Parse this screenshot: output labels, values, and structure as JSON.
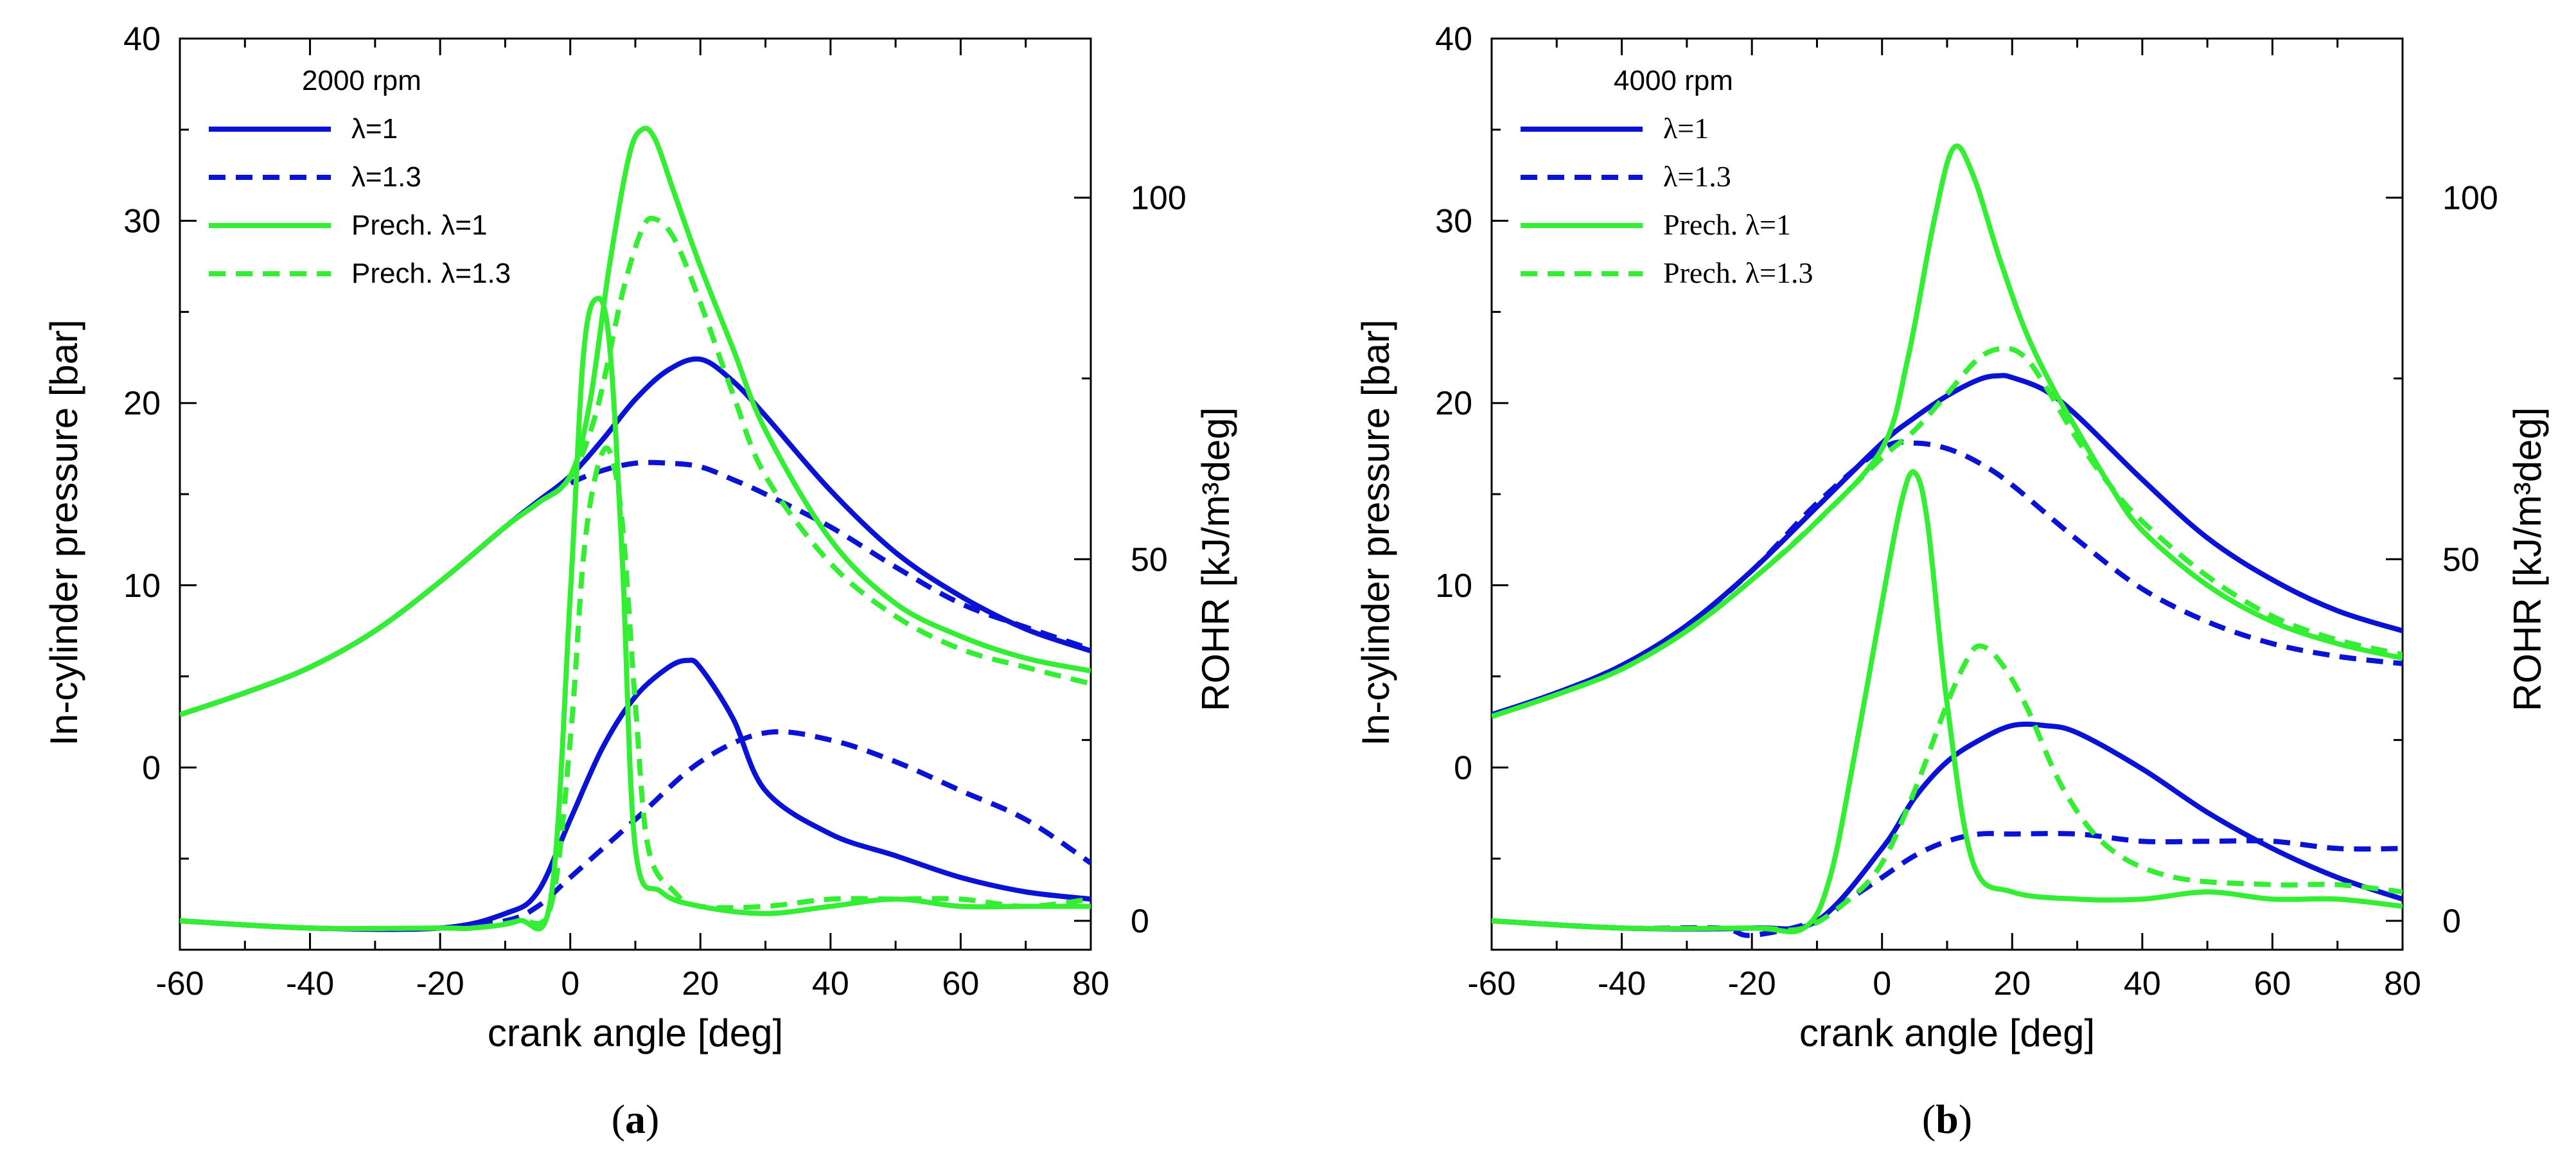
{
  "colors": {
    "blue": "#0a12d6",
    "green": "#33ee33",
    "axis": "#000000"
  },
  "chart_data": [
    {
      "type": "line",
      "panel_caption": "(a)",
      "caption_letter": "a",
      "legend_title": "2000 rpm",
      "xlabel": "crank angle [deg]",
      "ylabel": "In-cylinder pressure [bar]",
      "ylabel2": "ROHR [kJ/m³deg]",
      "xlim": [
        -60,
        80
      ],
      "ylim": [
        -10,
        40
      ],
      "y2lim": [
        -4,
        122
      ],
      "xticks": [
        -60,
        -40,
        -20,
        0,
        20,
        40,
        60,
        80
      ],
      "yticks": [
        0,
        10,
        20,
        30,
        40
      ],
      "y2ticks": [
        0,
        50,
        100
      ],
      "legend": [
        "λ=1",
        "λ=1.3",
        "Prech. λ=1",
        "Prech. λ=1.3"
      ],
      "series": [
        {
          "name": "λ=1",
          "axis": "pressure",
          "color": "blue",
          "dash": false,
          "x": [
            -60,
            -50,
            -40,
            -30,
            -20,
            -10,
            -5,
            0,
            5,
            10,
            15,
            20,
            25,
            30,
            40,
            50,
            60,
            70,
            80
          ],
          "y": [
            2.9,
            4.1,
            5.5,
            7.5,
            10.2,
            13.2,
            14.6,
            16.0,
            18.0,
            20.2,
            21.8,
            22.4,
            21.2,
            19.3,
            15.2,
            11.8,
            9.4,
            7.6,
            6.4
          ]
        },
        {
          "name": "λ=1.3",
          "axis": "pressure",
          "color": "blue",
          "dash": true,
          "x": [
            -60,
            -50,
            -40,
            -30,
            -20,
            -10,
            -5,
            0,
            5,
            10,
            15,
            20,
            25,
            30,
            40,
            50,
            60,
            70,
            80
          ],
          "y": [
            2.9,
            4.1,
            5.5,
            7.5,
            10.2,
            13.2,
            14.5,
            15.6,
            16.3,
            16.7,
            16.7,
            16.5,
            15.8,
            15.0,
            13.2,
            11.0,
            9.0,
            7.7,
            6.5
          ]
        },
        {
          "name": "Prech. λ=1",
          "axis": "pressure",
          "color": "green",
          "dash": false,
          "x": [
            -60,
            -50,
            -40,
            -30,
            -20,
            -10,
            -5,
            0,
            3,
            6,
            9,
            11,
            13,
            16,
            20,
            25,
            30,
            40,
            50,
            60,
            70,
            80
          ],
          "y": [
            2.9,
            4.1,
            5.5,
            7.5,
            10.2,
            13.2,
            14.5,
            16.0,
            20.0,
            27.5,
            33.5,
            35.0,
            34.5,
            31.5,
            27.5,
            23.0,
            18.5,
            12.5,
            9.0,
            7.2,
            6.0,
            5.3
          ]
        },
        {
          "name": "Prech. λ=1.3",
          "axis": "pressure",
          "color": "green",
          "dash": true,
          "x": [
            -60,
            -50,
            -40,
            -30,
            -20,
            -10,
            -5,
            0,
            4,
            8,
            11,
            13,
            16,
            20,
            25,
            30,
            40,
            50,
            60,
            70,
            80
          ],
          "y": [
            2.9,
            4.1,
            5.5,
            7.5,
            10.2,
            13.2,
            14.5,
            15.9,
            19.5,
            26.0,
            29.5,
            30.1,
            29.0,
            25.5,
            20.5,
            16.0,
            11.2,
            8.3,
            6.5,
            5.5,
            4.6
          ]
        },
        {
          "name": "λ=1 ROHR",
          "axis": "rohr",
          "color": "blue",
          "dash": false,
          "x": [
            -60,
            -40,
            -20,
            -10,
            -5,
            0,
            5,
            10,
            15,
            18,
            20,
            25,
            30,
            40,
            50,
            60,
            70,
            80
          ],
          "y": [
            0,
            -1,
            -1,
            1,
            4,
            14,
            24,
            31,
            35,
            36,
            35,
            28,
            18,
            12,
            9,
            6,
            4,
            3
          ]
        },
        {
          "name": "λ=1.3 ROHR",
          "axis": "rohr",
          "color": "blue",
          "dash": true,
          "x": [
            -60,
            -40,
            -20,
            -10,
            -5,
            0,
            10,
            20,
            30,
            40,
            50,
            60,
            70,
            80
          ],
          "y": [
            0,
            -1,
            -1,
            0,
            2,
            6,
            14,
            22,
            26,
            25,
            22,
            18,
            14,
            8
          ]
        },
        {
          "name": "Prech. λ=1 ROHR",
          "axis": "rohr",
          "color": "green",
          "dash": false,
          "x": [
            -60,
            -40,
            -20,
            -15,
            -8,
            -3,
            0,
            2,
            4,
            6,
            8,
            10,
            14,
            20,
            30,
            40,
            50,
            60,
            70,
            80
          ],
          "y": [
            0,
            -1,
            -1,
            -1,
            0,
            3,
            45,
            78,
            86,
            80,
            50,
            10,
            4,
            2,
            1,
            2,
            3,
            2,
            2,
            2
          ]
        },
        {
          "name": "Prech. λ=1.3 ROHR",
          "axis": "rohr",
          "color": "green",
          "dash": true,
          "x": [
            -60,
            -40,
            -20,
            -15,
            -8,
            -3,
            0,
            2,
            4,
            6,
            8,
            10,
            12,
            16,
            20,
            30,
            40,
            50,
            60,
            70,
            80
          ],
          "y": [
            0,
            -1,
            -1,
            -1,
            0,
            2,
            25,
            50,
            62,
            65,
            55,
            30,
            10,
            4,
            2,
            2,
            3,
            3,
            3,
            2,
            3
          ]
        }
      ]
    },
    {
      "type": "line",
      "panel_caption": "(b)",
      "caption_letter": "b",
      "legend_title": "4000 rpm",
      "xlabel": "crank angle [deg]",
      "ylabel": "In-cylinder pressure [bar]",
      "ylabel2": "ROHR [kJ/m³deg]",
      "xlim": [
        -60,
        80
      ],
      "ylim": [
        -10,
        40
      ],
      "y2lim": [
        -4,
        122
      ],
      "xticks": [
        -60,
        -40,
        -20,
        0,
        20,
        40,
        60,
        80
      ],
      "yticks": [
        0,
        10,
        20,
        30,
        40
      ],
      "y2ticks": [
        0,
        50,
        100
      ],
      "legend": [
        "λ=1",
        "λ=1.3",
        "Prech. λ=1",
        "Prech. λ=1.3"
      ],
      "series": [
        {
          "name": "λ=1",
          "axis": "pressure",
          "color": "blue",
          "dash": false,
          "x": [
            -60,
            -50,
            -40,
            -30,
            -20,
            -10,
            0,
            5,
            10,
            15,
            18,
            20,
            25,
            30,
            40,
            50,
            60,
            70,
            80
          ],
          "y": [
            2.9,
            4.1,
            5.6,
            7.8,
            10.8,
            14.3,
            17.8,
            19.2,
            20.4,
            21.3,
            21.5,
            21.4,
            20.7,
            19.3,
            15.8,
            12.6,
            10.3,
            8.6,
            7.5
          ]
        },
        {
          "name": "λ=1.3",
          "axis": "pressure",
          "color": "blue",
          "dash": true,
          "x": [
            -60,
            -50,
            -40,
            -30,
            -20,
            -10,
            0,
            5,
            10,
            15,
            20,
            30,
            40,
            50,
            60,
            70,
            80
          ],
          "y": [
            2.9,
            4.1,
            5.6,
            7.8,
            10.8,
            14.5,
            17.5,
            17.8,
            17.5,
            16.7,
            15.5,
            12.5,
            9.8,
            8.0,
            6.8,
            6.1,
            5.7
          ]
        },
        {
          "name": "Prech. λ=1",
          "axis": "pressure",
          "color": "green",
          "dash": false,
          "x": [
            -60,
            -50,
            -40,
            -30,
            -20,
            -10,
            0,
            4,
            8,
            11,
            14,
            18,
            22,
            26,
            30,
            35,
            40,
            50,
            60,
            70,
            80
          ],
          "y": [
            2.8,
            4.0,
            5.4,
            7.5,
            10.3,
            13.5,
            17.5,
            22.5,
            30.0,
            34.0,
            32.5,
            28.0,
            24.0,
            21.0,
            18.5,
            15.5,
            13.0,
            10.0,
            8.0,
            6.8,
            6.0
          ]
        },
        {
          "name": "Prech. λ=1.3",
          "axis": "pressure",
          "color": "green",
          "dash": true,
          "x": [
            -60,
            -50,
            -40,
            -30,
            -20,
            -10,
            0,
            5,
            10,
            15,
            19,
            22,
            25,
            30,
            35,
            40,
            50,
            60,
            70,
            80
          ],
          "y": [
            2.8,
            4.0,
            5.4,
            7.5,
            10.3,
            13.5,
            17.0,
            18.5,
            20.5,
            22.5,
            23.0,
            22.5,
            21.0,
            18.0,
            15.5,
            13.5,
            10.5,
            8.3,
            7.0,
            6.2
          ]
        },
        {
          "name": "λ=1 ROHR",
          "axis": "rohr",
          "color": "blue",
          "dash": false,
          "x": [
            -60,
            -40,
            -20,
            -10,
            0,
            5,
            10,
            15,
            20,
            25,
            30,
            40,
            50,
            60,
            70,
            80
          ],
          "y": [
            0,
            -1,
            -1,
            0,
            10,
            17,
            22,
            25,
            27,
            27,
            26,
            21,
            15,
            10,
            6,
            3
          ]
        },
        {
          "name": "λ=1.3 ROHR",
          "axis": "rohr",
          "color": "blue",
          "dash": true,
          "x": [
            -60,
            -40,
            -25,
            -20,
            -10,
            -5,
            0,
            5,
            10,
            15,
            20,
            30,
            40,
            50,
            60,
            70,
            80
          ],
          "y": [
            0,
            -1,
            -1,
            -2,
            0,
            3,
            6,
            9,
            11,
            12,
            12,
            12,
            11,
            11,
            11,
            10,
            10
          ]
        },
        {
          "name": "Prech. λ=1 ROHR",
          "axis": "rohr",
          "color": "green",
          "dash": false,
          "x": [
            -60,
            -40,
            -20,
            -12,
            -8,
            -4,
            0,
            3,
            5,
            7,
            10,
            14,
            20,
            30,
            40,
            50,
            60,
            70,
            80
          ],
          "y": [
            0,
            -1,
            -1,
            -1,
            6,
            24,
            44,
            58,
            62,
            55,
            30,
            8,
            4,
            3,
            3,
            4,
            3,
            3,
            2
          ]
        },
        {
          "name": "Prech. λ=1.3 ROHR",
          "axis": "rohr",
          "color": "green",
          "dash": true,
          "x": [
            -60,
            -40,
            -20,
            -12,
            -5,
            0,
            5,
            10,
            13,
            15,
            18,
            22,
            28,
            35,
            45,
            60,
            70,
            80
          ],
          "y": [
            0,
            -1,
            -1,
            -1,
            3,
            8,
            18,
            30,
            36,
            38,
            36,
            30,
            18,
            10,
            6,
            5,
            5,
            4
          ]
        }
      ]
    }
  ]
}
